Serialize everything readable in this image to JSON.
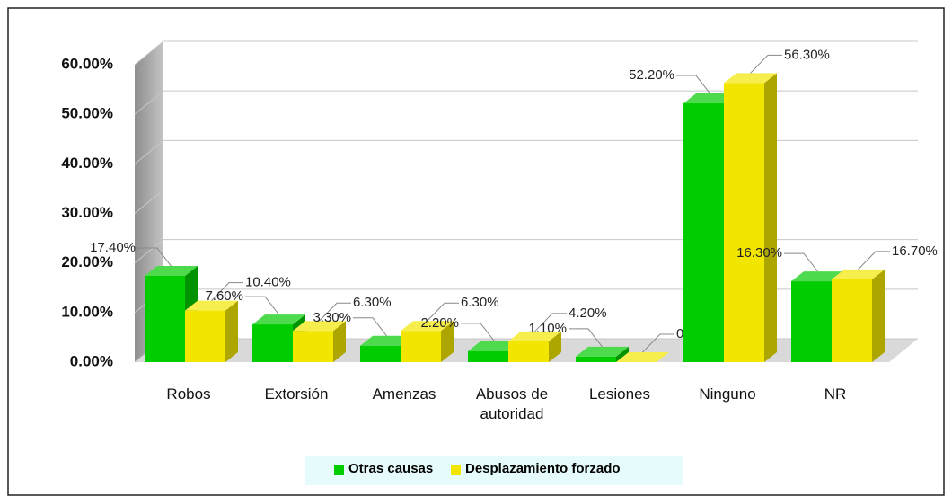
{
  "chart_data": {
    "type": "bar3d",
    "categories": [
      "Robos",
      "Extorsión",
      "Amenzas",
      "Abusos de autoridad",
      "Lesiones",
      "Ninguno",
      "NR"
    ],
    "series": [
      {
        "name": "Otras causas",
        "color": "#00cc00",
        "values": [
          17.4,
          7.6,
          3.3,
          2.2,
          1.1,
          52.2,
          16.3
        ],
        "value_labels": [
          "17.40%",
          "7.60%",
          "3.30%",
          "2.20%",
          "1.10%",
          "52.20%",
          "16.30%"
        ]
      },
      {
        "name": "Desplazamiento forzado",
        "color": "#f2e600",
        "values": [
          10.4,
          6.3,
          6.3,
          4.2,
          0,
          56.3,
          16.7
        ],
        "value_labels": [
          "10.40%",
          "6.30%",
          "6.30%",
          "4.20%",
          "0.00%",
          "56.30%",
          "16.70%"
        ]
      }
    ],
    "ylim": [
      0,
      60
    ],
    "yticks": [
      {
        "value": 0,
        "label": "0.00%"
      },
      {
        "value": 10,
        "label": "10.00%"
      },
      {
        "value": 20,
        "label": "20.00%"
      },
      {
        "value": 30,
        "label": "30.00%"
      },
      {
        "value": 40,
        "label": "40.00%"
      },
      {
        "value": 50,
        "label": "50.00%"
      },
      {
        "value": 60,
        "label": "60.00%"
      }
    ],
    "grid": true,
    "legend": "bottom"
  }
}
